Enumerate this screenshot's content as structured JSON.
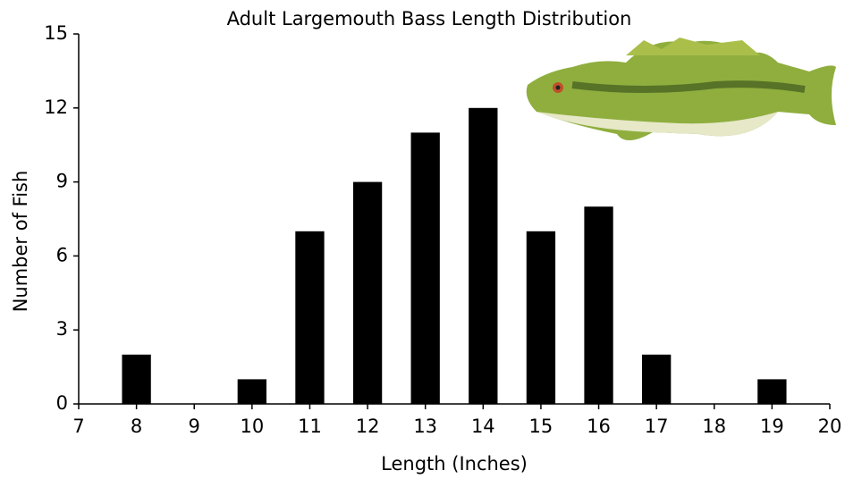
{
  "chart_data": {
    "type": "bar",
    "title": "Adult Largemouth Bass Length Distribution",
    "x_label": "Length (Inches)",
    "y_label": "Number of Fish",
    "x": [
      8,
      10,
      11,
      12,
      13,
      14,
      15,
      16,
      17,
      19
    ],
    "values": [
      2,
      1,
      7,
      9,
      11,
      12,
      7,
      8,
      2,
      1
    ],
    "color": "#000000",
    "xlim": [
      7,
      20
    ],
    "xticks": [
      7,
      8,
      9,
      10,
      11,
      12,
      13,
      14,
      15,
      16,
      17,
      18,
      19,
      20
    ],
    "ylim": [
      0,
      15
    ],
    "yticks": [
      0,
      3,
      6,
      9,
      12,
      15
    ],
    "grid": false
  }
}
